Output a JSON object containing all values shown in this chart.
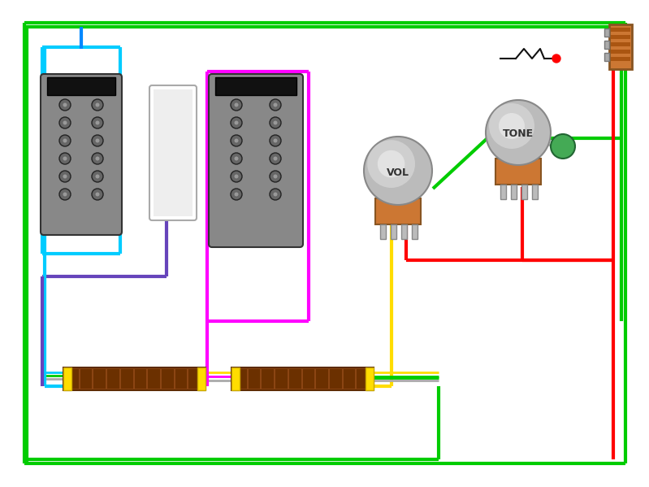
{
  "bg_color": "#ffffff",
  "wire_red": "#ff0000",
  "wire_green": "#00cc00",
  "wire_yellow": "#ffdd00",
  "wire_blue": "#0088ff",
  "wire_cyan": "#00ccff",
  "wire_magenta": "#ff00ff",
  "wire_purple": "#6644bb",
  "wire_black": "#111111",
  "wire_gray": "#aaaaaa",
  "pickup_body": "#888888",
  "pickup_dark": "#555555",
  "pickup_cap": "#111111",
  "pot_brown": "#cc7733",
  "pot_gray": "#bbbbbb",
  "pot_white": "#dddddd",
  "jack_brown": "#cc7733",
  "cap_green": "#44aa55",
  "lw_main": 3
}
